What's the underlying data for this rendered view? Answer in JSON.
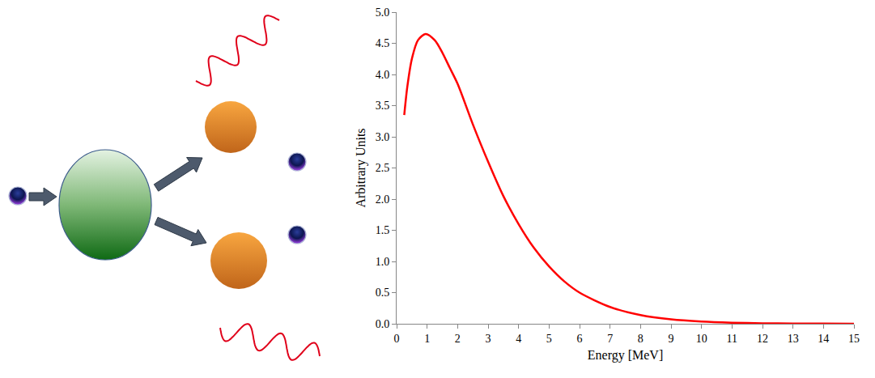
{
  "chart_data": {
    "type": "line",
    "xlabel": "Energy [MeV]",
    "ylabel": "Arbitrary Units",
    "x": [
      0.25,
      0.35,
      0.5,
      0.7,
      0.95,
      1.25,
      1.5,
      1.75,
      2,
      2.5,
      3,
      3.5,
      4,
      4.5,
      5,
      5.5,
      6,
      7,
      8,
      9,
      10,
      11,
      12,
      13,
      14,
      15
    ],
    "values": [
      3.35,
      3.8,
      4.25,
      4.55,
      4.65,
      4.55,
      4.35,
      4.1,
      3.85,
      3.2,
      2.6,
      2.05,
      1.6,
      1.22,
      0.92,
      0.68,
      0.5,
      0.27,
      0.14,
      0.07,
      0.035,
      0.017,
      0.008,
      0.004,
      0.002,
      0.001
    ],
    "color": "#ff0000",
    "xlim": [
      0,
      15
    ],
    "xticks": [
      0,
      1,
      2,
      3,
      4,
      5,
      6,
      7,
      8,
      9,
      10,
      11,
      12,
      13,
      14,
      15
    ],
    "ylim": [
      0,
      5
    ],
    "yticks": [
      {
        "value": 0,
        "label": "0.0"
      },
      {
        "value": 0.5,
        "label": "0.5"
      },
      {
        "value": 1,
        "label": "1.0"
      },
      {
        "value": 1.5,
        "label": "1.5"
      },
      {
        "value": 2,
        "label": "2.0"
      },
      {
        "value": 2.5,
        "label": "2.5"
      },
      {
        "value": 3,
        "label": "3.0"
      },
      {
        "value": 3.5,
        "label": "3.5"
      },
      {
        "value": 4,
        "label": "4.0"
      },
      {
        "value": 4.5,
        "label": "4.5"
      },
      {
        "value": 5,
        "label": "5.0"
      }
    ],
    "grid": false
  }
}
